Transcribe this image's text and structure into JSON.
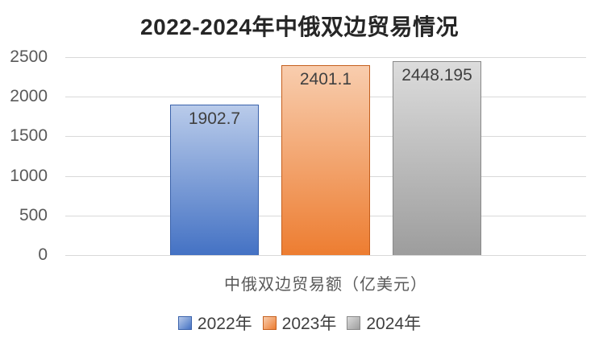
{
  "chart_data": {
    "type": "bar",
    "title": "2022-2024年中俄双边贸易情况",
    "categories": [
      "中俄双边贸易额（亿美元）"
    ],
    "series": [
      {
        "name": "2022年",
        "values": [
          1902.7
        ],
        "data_label": "1902.7",
        "fill_top": "#b9cbea",
        "fill_bottom": "#4472c4",
        "border": "#3a62ab"
      },
      {
        "name": "2023年",
        "values": [
          2401.1
        ],
        "data_label": "2401.1",
        "fill_top": "#f8cdae",
        "fill_bottom": "#ed7d31",
        "border": "#c55f1d"
      },
      {
        "name": "2024年",
        "values": [
          2448.195
        ],
        "data_label": "2448.195",
        "fill_top": "#dcdcdc",
        "fill_bottom": "#9d9d9d",
        "border": "#898989"
      }
    ],
    "xlabel": "中俄双边贸易额（亿美元）",
    "ylabel": "",
    "ylim": [
      0,
      2500
    ],
    "yticks": [
      0,
      500,
      1000,
      1500,
      2000,
      2500
    ],
    "grid": true,
    "legend_position": "bottom",
    "legend_labels": [
      "2022年",
      "2023年",
      "2024年"
    ]
  },
  "colors": {
    "background": "#ffffff",
    "title": "#262626",
    "grid": "#d9d9d9",
    "tick_label": "#595959",
    "data_label": "#404040",
    "axis_label": "#595959",
    "legend_label": "#404040"
  }
}
